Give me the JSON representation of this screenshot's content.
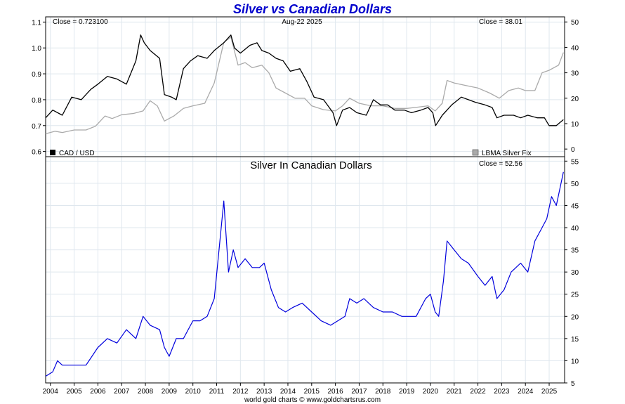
{
  "chart_data": [
    {
      "type": "line",
      "title": "Silver vs Canadian Dollars",
      "date": "Aug-22  2025",
      "close_left": "Close = 0.723100",
      "close_right": "Close = 38.01",
      "x_ticks": [
        "2004",
        "2005",
        "2006",
        "2007",
        "2008",
        "2009",
        "2010",
        "2011",
        "2012",
        "2013",
        "2014",
        "2015",
        "2016",
        "2017",
        "2018",
        "2019",
        "2020",
        "2021",
        "2022",
        "2023",
        "2024",
        "2025"
      ],
      "xlim": [
        2003.8,
        2025.65
      ],
      "y_left": {
        "ticks": [
          "0.6",
          "0.7",
          "0.8",
          "0.9",
          "1.0",
          "1.1"
        ],
        "lim": [
          0.58,
          1.12
        ]
      },
      "y_right": {
        "ticks": [
          "0",
          "10",
          "20",
          "30",
          "40",
          "50"
        ],
        "lim": [
          -3,
          52
        ]
      },
      "series": [
        {
          "name": "CAD / USD",
          "axis": "left",
          "color": "#000000",
          "x": [
            2003.8,
            2004.1,
            2004.5,
            2004.9,
            2005.3,
            2005.7,
            2006.0,
            2006.4,
            2006.8,
            2007.2,
            2007.6,
            2007.8,
            2007.95,
            2008.2,
            2008.6,
            2008.8,
            2009.1,
            2009.3,
            2009.6,
            2009.9,
            2010.2,
            2010.6,
            2010.9,
            2011.3,
            2011.6,
            2011.75,
            2012.0,
            2012.4,
            2012.7,
            2012.9,
            2013.2,
            2013.5,
            2013.8,
            2014.1,
            2014.5,
            2014.8,
            2015.1,
            2015.5,
            2015.9,
            2016.05,
            2016.3,
            2016.6,
            2016.9,
            2017.3,
            2017.6,
            2017.9,
            2018.2,
            2018.5,
            2018.9,
            2019.2,
            2019.6,
            2019.9,
            2020.1,
            2020.22,
            2020.5,
            2020.9,
            2021.3,
            2021.6,
            2021.9,
            2022.3,
            2022.6,
            2022.8,
            2023.1,
            2023.5,
            2023.8,
            2024.1,
            2024.5,
            2024.8,
            2025.0,
            2025.3,
            2025.6
          ],
          "y": [
            0.73,
            0.76,
            0.74,
            0.81,
            0.8,
            0.84,
            0.86,
            0.89,
            0.88,
            0.86,
            0.95,
            1.05,
            1.02,
            0.99,
            0.96,
            0.82,
            0.81,
            0.8,
            0.92,
            0.95,
            0.97,
            0.96,
            0.99,
            1.02,
            1.05,
            1.0,
            0.98,
            1.01,
            1.02,
            0.99,
            0.98,
            0.96,
            0.95,
            0.91,
            0.92,
            0.87,
            0.81,
            0.8,
            0.75,
            0.7,
            0.76,
            0.77,
            0.75,
            0.74,
            0.8,
            0.78,
            0.78,
            0.76,
            0.76,
            0.75,
            0.76,
            0.77,
            0.75,
            0.7,
            0.74,
            0.78,
            0.81,
            0.8,
            0.79,
            0.78,
            0.77,
            0.73,
            0.74,
            0.74,
            0.73,
            0.74,
            0.73,
            0.73,
            0.7,
            0.7,
            0.723
          ]
        },
        {
          "name": "LBMA Silver Fix",
          "axis": "right",
          "color": "#aaaaaa",
          "x": [
            2003.8,
            2004.2,
            2004.5,
            2005.0,
            2005.5,
            2005.9,
            2006.3,
            2006.6,
            2007.0,
            2007.5,
            2007.9,
            2008.2,
            2008.5,
            2008.8,
            2009.2,
            2009.6,
            2010.0,
            2010.5,
            2010.9,
            2011.3,
            2011.6,
            2011.9,
            2012.2,
            2012.5,
            2012.9,
            2013.2,
            2013.5,
            2013.9,
            2014.3,
            2014.7,
            2015.0,
            2015.5,
            2016.0,
            2016.3,
            2016.6,
            2017.0,
            2017.5,
            2018.0,
            2018.5,
            2019.0,
            2019.5,
            2019.9,
            2020.2,
            2020.5,
            2020.7,
            2021.0,
            2021.5,
            2022.0,
            2022.5,
            2022.9,
            2023.3,
            2023.7,
            2024.0,
            2024.4,
            2024.7,
            2025.0,
            2025.4,
            2025.6
          ],
          "y": [
            6,
            7,
            6.5,
            7.5,
            7.5,
            9,
            13,
            12,
            13.5,
            14,
            15,
            19,
            17,
            11,
            13,
            16,
            17,
            18,
            26,
            42,
            44,
            33,
            34,
            32,
            33,
            30,
            24,
            22,
            20,
            20,
            17,
            15.5,
            15,
            17,
            20,
            18,
            17,
            17,
            16,
            16,
            16.5,
            17,
            15,
            18,
            27,
            26,
            25,
            24,
            22,
            20,
            23,
            24,
            23,
            23,
            30,
            31,
            33,
            38
          ]
        }
      ],
      "legend": [
        "CAD / USD",
        "LBMA Silver Fix"
      ]
    },
    {
      "type": "line",
      "title": "Silver In Canadian Dollars",
      "close": "Close = 52.56",
      "y_right": {
        "ticks": [
          "5",
          "10",
          "15",
          "20",
          "25",
          "30",
          "35",
          "40",
          "45",
          "50",
          "55"
        ],
        "lim": [
          5,
          56
        ]
      },
      "series": [
        {
          "name": "Silver In Canadian Dollars",
          "axis": "right",
          "color": "#0000dd",
          "x": [
            2003.8,
            2004.1,
            2004.3,
            2004.5,
            2005.0,
            2005.5,
            2006.0,
            2006.4,
            2006.8,
            2007.2,
            2007.6,
            2007.9,
            2008.2,
            2008.6,
            2008.8,
            2009.0,
            2009.3,
            2009.6,
            2010.0,
            2010.3,
            2010.6,
            2010.9,
            2011.1,
            2011.3,
            2011.5,
            2011.7,
            2011.9,
            2012.2,
            2012.5,
            2012.8,
            2013.0,
            2013.3,
            2013.6,
            2013.9,
            2014.2,
            2014.6,
            2015.0,
            2015.4,
            2015.8,
            2016.1,
            2016.4,
            2016.6,
            2016.9,
            2017.2,
            2017.6,
            2018.0,
            2018.4,
            2018.8,
            2019.0,
            2019.4,
            2019.8,
            2020.0,
            2020.2,
            2020.35,
            2020.55,
            2020.7,
            2021.0,
            2021.3,
            2021.6,
            2022.0,
            2022.3,
            2022.6,
            2022.8,
            2023.1,
            2023.4,
            2023.8,
            2024.1,
            2024.4,
            2024.7,
            2024.9,
            2025.1,
            2025.3,
            2025.5,
            2025.6
          ],
          "y": [
            6.5,
            7.5,
            10,
            9,
            9,
            9,
            13,
            15,
            14,
            17,
            15,
            20,
            18,
            17,
            13,
            11,
            15,
            15,
            19,
            19,
            20,
            24,
            35,
            46,
            30,
            35,
            31,
            33,
            31,
            31,
            32,
            26,
            22,
            21,
            22,
            23,
            21,
            19,
            18,
            19,
            20,
            24,
            23,
            24,
            22,
            21,
            21,
            20,
            20,
            20,
            24,
            25,
            21,
            20,
            28,
            37,
            35,
            33,
            32,
            29,
            27,
            29,
            24,
            26,
            30,
            32,
            30,
            37,
            40,
            42,
            47,
            45,
            50,
            52.56
          ]
        }
      ]
    }
  ],
  "footer": "world gold charts © www.goldchartsrus.com"
}
